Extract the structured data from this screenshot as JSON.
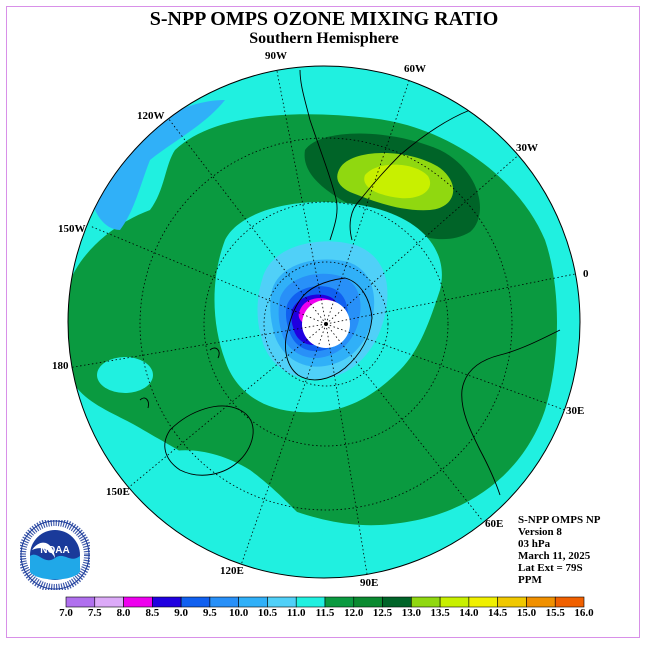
{
  "title": "S-NPP OMPS OZONE MIXING RATIO",
  "subtitle": "Southern Hemisphere",
  "longitude_labels": {
    "w90": "90W",
    "w60": "60W",
    "w30": "30W",
    "w120": "120W",
    "w150": "150W",
    "e0": "0",
    "d180": "180",
    "e30": "30E",
    "e60": "60E",
    "e90": "90E",
    "e120": "120E",
    "e150": "150E"
  },
  "info": {
    "line1": "S-NPP OMPS NP",
    "line2": "Version 8",
    "line3": "03 hPa",
    "line4": "March 11, 2025",
    "line5": "Lat Ext = 79S",
    "line6": "PPM"
  },
  "logo": {
    "text": "NOAA",
    "ring_text": "NATIONAL OCEANIC AND ATMOSPHERIC ADMINISTRATION · U.S. DEPARTMENT OF COMMERCE"
  },
  "colorbar": {
    "ticks": [
      "7.0",
      "7.5",
      "8.0",
      "8.5",
      "9.0",
      "9.5",
      "10.0",
      "10.5",
      "11.0",
      "11.5",
      "12.0",
      "12.5",
      "13.0",
      "13.5",
      "14.0",
      "14.5",
      "15.0",
      "15.5",
      "16.0"
    ],
    "colors": [
      "#b070ee",
      "#dcaaf8",
      "#ee00ee",
      "#2000e0",
      "#1060f0",
      "#2890f8",
      "#30b0f8",
      "#50d0f8",
      "#20f0e0",
      "#0a9a40",
      "#0a8a30",
      "#006428",
      "#90d810",
      "#c8f000",
      "#f0f000",
      "#f0c800",
      "#f09000",
      "#f06000",
      "#ee0000",
      "#a06030"
    ]
  },
  "chart_data": {
    "type": "heatmap",
    "title": "S-NPP OMPS OZONE MIXING RATIO",
    "subtitle": "Southern Hemisphere",
    "projection": "south polar stereographic",
    "latitude_extent": "79S",
    "pressure_level": "03 hPa",
    "date": "March 11, 2025",
    "units": "PPM",
    "color_scale_range": [
      7.0,
      16.0
    ],
    "color_scale_step": 0.5,
    "features": [
      {
        "region": "pole (unsampled)",
        "value": null
      },
      {
        "region": "ring around pole",
        "range": [
          8.0,
          10.0
        ]
      },
      {
        "region": "inner cyan zone",
        "range": [
          10.5,
          11.5
        ]
      },
      {
        "region": "mid-latitude band",
        "range": [
          11.0,
          12.0
        ]
      },
      {
        "region": "maximum near South Atlantic / 45W",
        "range": [
          12.0,
          13.0
        ]
      }
    ]
  }
}
